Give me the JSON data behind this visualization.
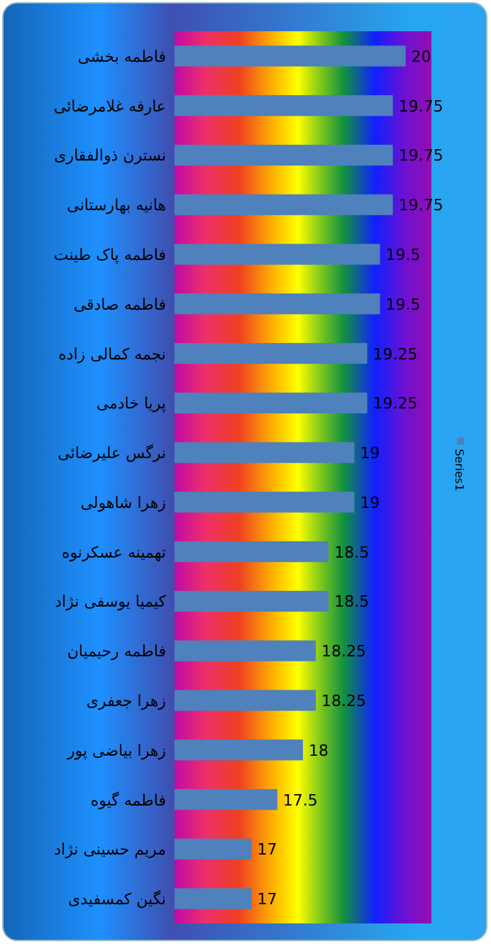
{
  "chart_data": {
    "type": "bar",
    "orientation": "horizontal",
    "categories": [
      "فاطمه بخشی",
      "عارفه غلامرضائی",
      "نسترن ذوالفقاری",
      "هانیه بهارستانی",
      "فاطمه پاک طینت",
      "فاطمه صادقی",
      "نجمه کمالی زاده",
      "پریا خادمی",
      "نرگس علیرضائی",
      "زهرا شاهولی",
      "تهمینه عسکرنوه",
      "کیمیا یوسفی نژاد",
      "فاطمه رحیمیان",
      "زهرا جعفری",
      "زهرا بیاضی پور",
      "فاطمه گیوه",
      "مریم حسینی نژاد",
      "نگین کمسفیدی"
    ],
    "series": [
      {
        "name": "Series1",
        "color": "#4f81bd",
        "values": [
          20,
          19.75,
          19.75,
          19.75,
          19.5,
          19.5,
          19.25,
          19.25,
          19,
          19,
          18.5,
          18.5,
          18.25,
          18.25,
          18,
          17.5,
          17,
          17
        ]
      }
    ],
    "xlim": [
      15.5,
      20.5
    ],
    "tick_labels": "y",
    "data_labels": true,
    "legend": "right"
  }
}
